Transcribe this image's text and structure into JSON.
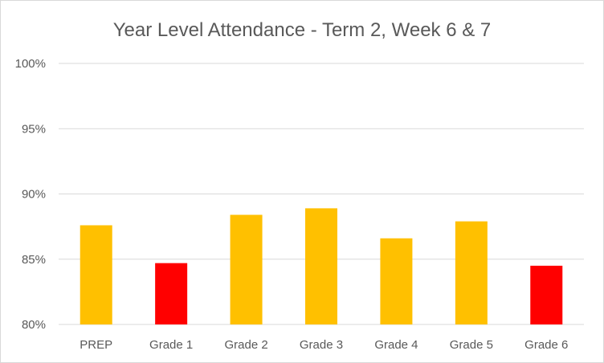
{
  "chart_data": {
    "type": "bar",
    "title": "Year Level Attendance - Term 2, Week 6 & 7",
    "xlabel": "",
    "ylabel": "",
    "categories": [
      "PREP",
      "Grade 1",
      "Grade 2",
      "Grade 3",
      "Grade 4",
      "Grade 5",
      "Grade 6"
    ],
    "values": [
      87.6,
      84.7,
      88.4,
      88.9,
      86.6,
      87.9,
      84.5
    ],
    "bar_colors": [
      "#FFC000",
      "#FF0000",
      "#FFC000",
      "#FFC000",
      "#FFC000",
      "#FFC000",
      "#FF0000"
    ],
    "ylim": [
      80,
      100
    ],
    "yticks": [
      80,
      85,
      90,
      95,
      100
    ],
    "ytick_labels": [
      "80%",
      "85%",
      "90%",
      "95%",
      "100%"
    ],
    "grid": true,
    "legend": "none"
  }
}
